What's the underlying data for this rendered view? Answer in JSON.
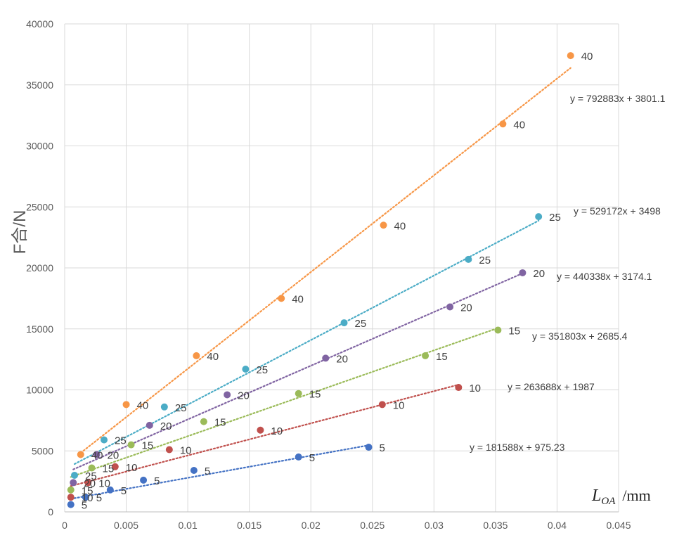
{
  "chart_data": {
    "type": "scatter",
    "title": "",
    "ylabel": "F合/N",
    "xlabel": {
      "main": "L",
      "sub": "OA",
      "unit": "/mm"
    },
    "xlim": [
      0,
      0.045
    ],
    "ylim": [
      0,
      40000
    ],
    "xticks": [
      "0",
      "0.005",
      "0.01",
      "0.015",
      "0.02",
      "0.025",
      "0.03",
      "0.035",
      "0.04",
      "0.045"
    ],
    "yticks": [
      "0",
      "5000",
      "10000",
      "15000",
      "20000",
      "25000",
      "30000",
      "35000",
      "40000"
    ],
    "grid": true,
    "trendline_style": "dotted linear",
    "series": [
      {
        "label": "5",
        "color": "#4472c4",
        "equation": "y = 181588x + 975.23",
        "points": [
          [
            0.0005,
            600
          ],
          [
            0.0017,
            1200
          ],
          [
            0.0037,
            1800
          ],
          [
            0.0064,
            2600
          ],
          [
            0.0105,
            3400
          ],
          [
            0.019,
            4500
          ],
          [
            0.0247,
            5300
          ]
        ],
        "point_labels": [
          "5",
          "5",
          "5",
          "5",
          "5",
          "5",
          "5"
        ]
      },
      {
        "label": "10",
        "color": "#c0504d",
        "equation": "y = 263688x + 1987",
        "points": [
          [
            0.0005,
            1200
          ],
          [
            0.0019,
            2400
          ],
          [
            0.0041,
            3700
          ],
          [
            0.0085,
            5100
          ],
          [
            0.0159,
            6700
          ],
          [
            0.0258,
            8800
          ],
          [
            0.032,
            10200
          ]
        ],
        "point_labels": [
          "10",
          "10",
          "10",
          "10",
          "10",
          "10",
          "10"
        ]
      },
      {
        "label": "15",
        "color": "#9bbb59",
        "equation": "y = 351803x + 2685.4",
        "points": [
          [
            0.0005,
            1800
          ],
          [
            0.0022,
            3600
          ],
          [
            0.0054,
            5500
          ],
          [
            0.0113,
            7400
          ],
          [
            0.019,
            9700
          ],
          [
            0.0293,
            12800
          ],
          [
            0.0352,
            14900
          ]
        ],
        "point_labels": [
          "15",
          "15",
          "15",
          "15",
          "15",
          "15",
          "15"
        ]
      },
      {
        "label": "20",
        "color": "#8064a2",
        "equation": "y = 440338x + 3174.1",
        "points": [
          [
            0.0007,
            2400
          ],
          [
            0.0026,
            4700
          ],
          [
            0.0069,
            7100
          ],
          [
            0.0132,
            9600
          ],
          [
            0.0212,
            12600
          ],
          [
            0.0313,
            16800
          ],
          [
            0.0372,
            19600
          ]
        ],
        "point_labels": [
          "20",
          "20",
          "20",
          "20",
          "20",
          "20",
          "20"
        ]
      },
      {
        "label": "25",
        "color": "#4bacc6",
        "equation": "y = 529172x + 3498",
        "points": [
          [
            0.0008,
            3000
          ],
          [
            0.0032,
            5900
          ],
          [
            0.0081,
            8600
          ],
          [
            0.0147,
            11700
          ],
          [
            0.0227,
            15500
          ],
          [
            0.0328,
            20700
          ],
          [
            0.0385,
            24200
          ]
        ],
        "point_labels": [
          "25",
          "25",
          "25",
          "25",
          "25",
          "25",
          "25"
        ]
      },
      {
        "label": "40",
        "color": "#f79646",
        "equation": "y = 792883x + 3801.1",
        "points": [
          [
            0.0013,
            4700
          ],
          [
            0.005,
            8800
          ],
          [
            0.0107,
            12800
          ],
          [
            0.0176,
            17500
          ],
          [
            0.0259,
            23500
          ],
          [
            0.0356,
            31800
          ],
          [
            0.0411,
            37400
          ]
        ],
        "point_labels": [
          "40",
          "40",
          "40",
          "40",
          "40",
          "40",
          "40"
        ]
      }
    ]
  }
}
